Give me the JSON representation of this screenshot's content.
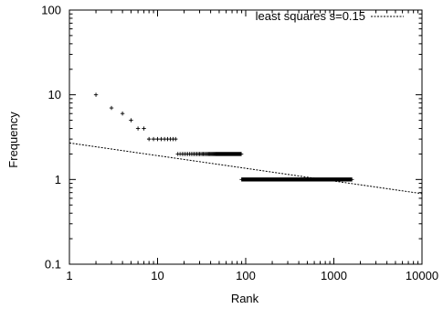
{
  "chart_data": {
    "type": "scatter",
    "title": "",
    "xlabel": "Rank",
    "ylabel": "Frequency",
    "x_scale": "log",
    "y_scale": "log",
    "xlim": [
      1,
      10000
    ],
    "ylim": [
      0.1,
      100
    ],
    "x_ticks": [
      1,
      10,
      100,
      1000,
      10000
    ],
    "x_tick_labels": [
      "1",
      "10",
      "100",
      "1000",
      "10000"
    ],
    "y_ticks": [
      0.1,
      1,
      10,
      100
    ],
    "y_tick_labels": [
      "0.1",
      "1",
      "10",
      "100"
    ],
    "grid": false,
    "legend": {
      "position": "top-right",
      "entries": [
        "least squares s=0.15"
      ]
    },
    "series": [
      {
        "type": "scatter",
        "marker": "+",
        "groups": [
          {
            "y": 10,
            "x_from": 2,
            "x_to": 2
          },
          {
            "y": 7,
            "x_from": 3,
            "x_to": 3
          },
          {
            "y": 6,
            "x_from": 4,
            "x_to": 4
          },
          {
            "y": 5,
            "x_from": 5,
            "x_to": 5
          },
          {
            "y": 4,
            "x_from": 6,
            "x_to": 7
          },
          {
            "y": 3,
            "x_from": 8,
            "x_to": 16
          },
          {
            "y": 2,
            "x_from": 17,
            "x_to": 89
          },
          {
            "y": 1,
            "x_from": 90,
            "x_to": 1600
          }
        ]
      },
      {
        "name": "least squares s=0.15",
        "type": "line",
        "style": "dashed",
        "x": [
          1,
          10000
        ],
        "y": [
          2.7,
          0.68
        ]
      }
    ]
  }
}
